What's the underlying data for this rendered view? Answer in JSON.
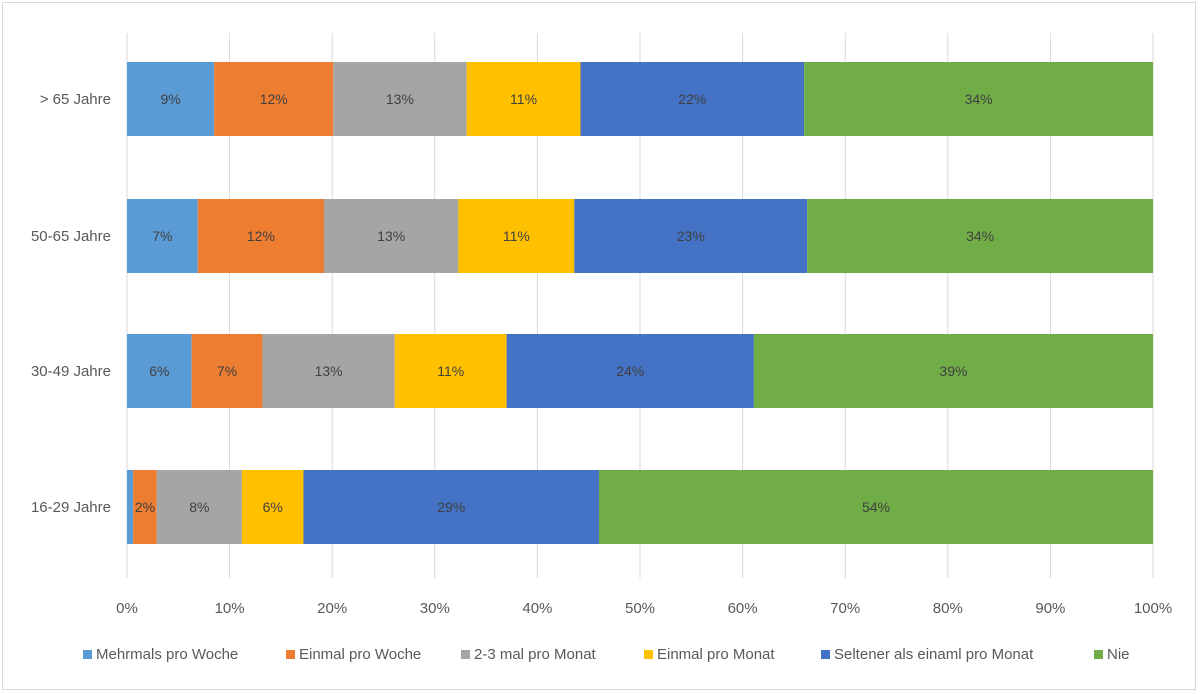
{
  "chart_data": {
    "type": "bar",
    "orientation": "horizontal",
    "stacked": true,
    "categories": [
      "> 65 Jahre",
      "50-65 Jahre",
      "30-49 Jahre",
      "16-29 Jahre"
    ],
    "series": [
      {
        "name": "Mehrmals pro Woche",
        "color": "#5b9bd5",
        "values": [
          8.5,
          6.9,
          6.3,
          0.6
        ],
        "labels": [
          "9%",
          "7%",
          "6%",
          ""
        ]
      },
      {
        "name": "Einmal pro Woche",
        "color": "#ed7d31",
        "values": [
          11.6,
          12.3,
          6.9,
          2.3
        ],
        "labels": [
          "12%",
          "12%",
          "7%",
          "2%"
        ]
      },
      {
        "name": "2-3 mal pro Monat",
        "color": "#a5a5a5",
        "values": [
          13.0,
          13.1,
          12.9,
          8.3
        ],
        "labels": [
          "13%",
          "13%",
          "13%",
          "8%"
        ]
      },
      {
        "name": "Einmal pro Monat",
        "color": "#ffc000",
        "values": [
          11.1,
          11.3,
          10.9,
          6.0
        ],
        "labels": [
          "11%",
          "11%",
          "11%",
          "6%"
        ]
      },
      {
        "name": "Seltener als einaml pro Monat",
        "color": "#4472c4",
        "values": [
          21.8,
          22.7,
          24.1,
          28.8
        ],
        "labels": [
          "22%",
          "23%",
          "24%",
          "29%"
        ]
      },
      {
        "name": "Nie",
        "color": "#70ad47",
        "values": [
          34.0,
          33.7,
          38.9,
          54.0
        ],
        "labels": [
          "34%",
          "34%",
          "39%",
          "54%"
        ]
      }
    ],
    "xlim": [
      0,
      100
    ],
    "xticks": [
      "0%",
      "10%",
      "20%",
      "30%",
      "40%",
      "50%",
      "60%",
      "70%",
      "80%",
      "90%",
      "100%"
    ],
    "grid": true,
    "legend_position": "bottom"
  }
}
